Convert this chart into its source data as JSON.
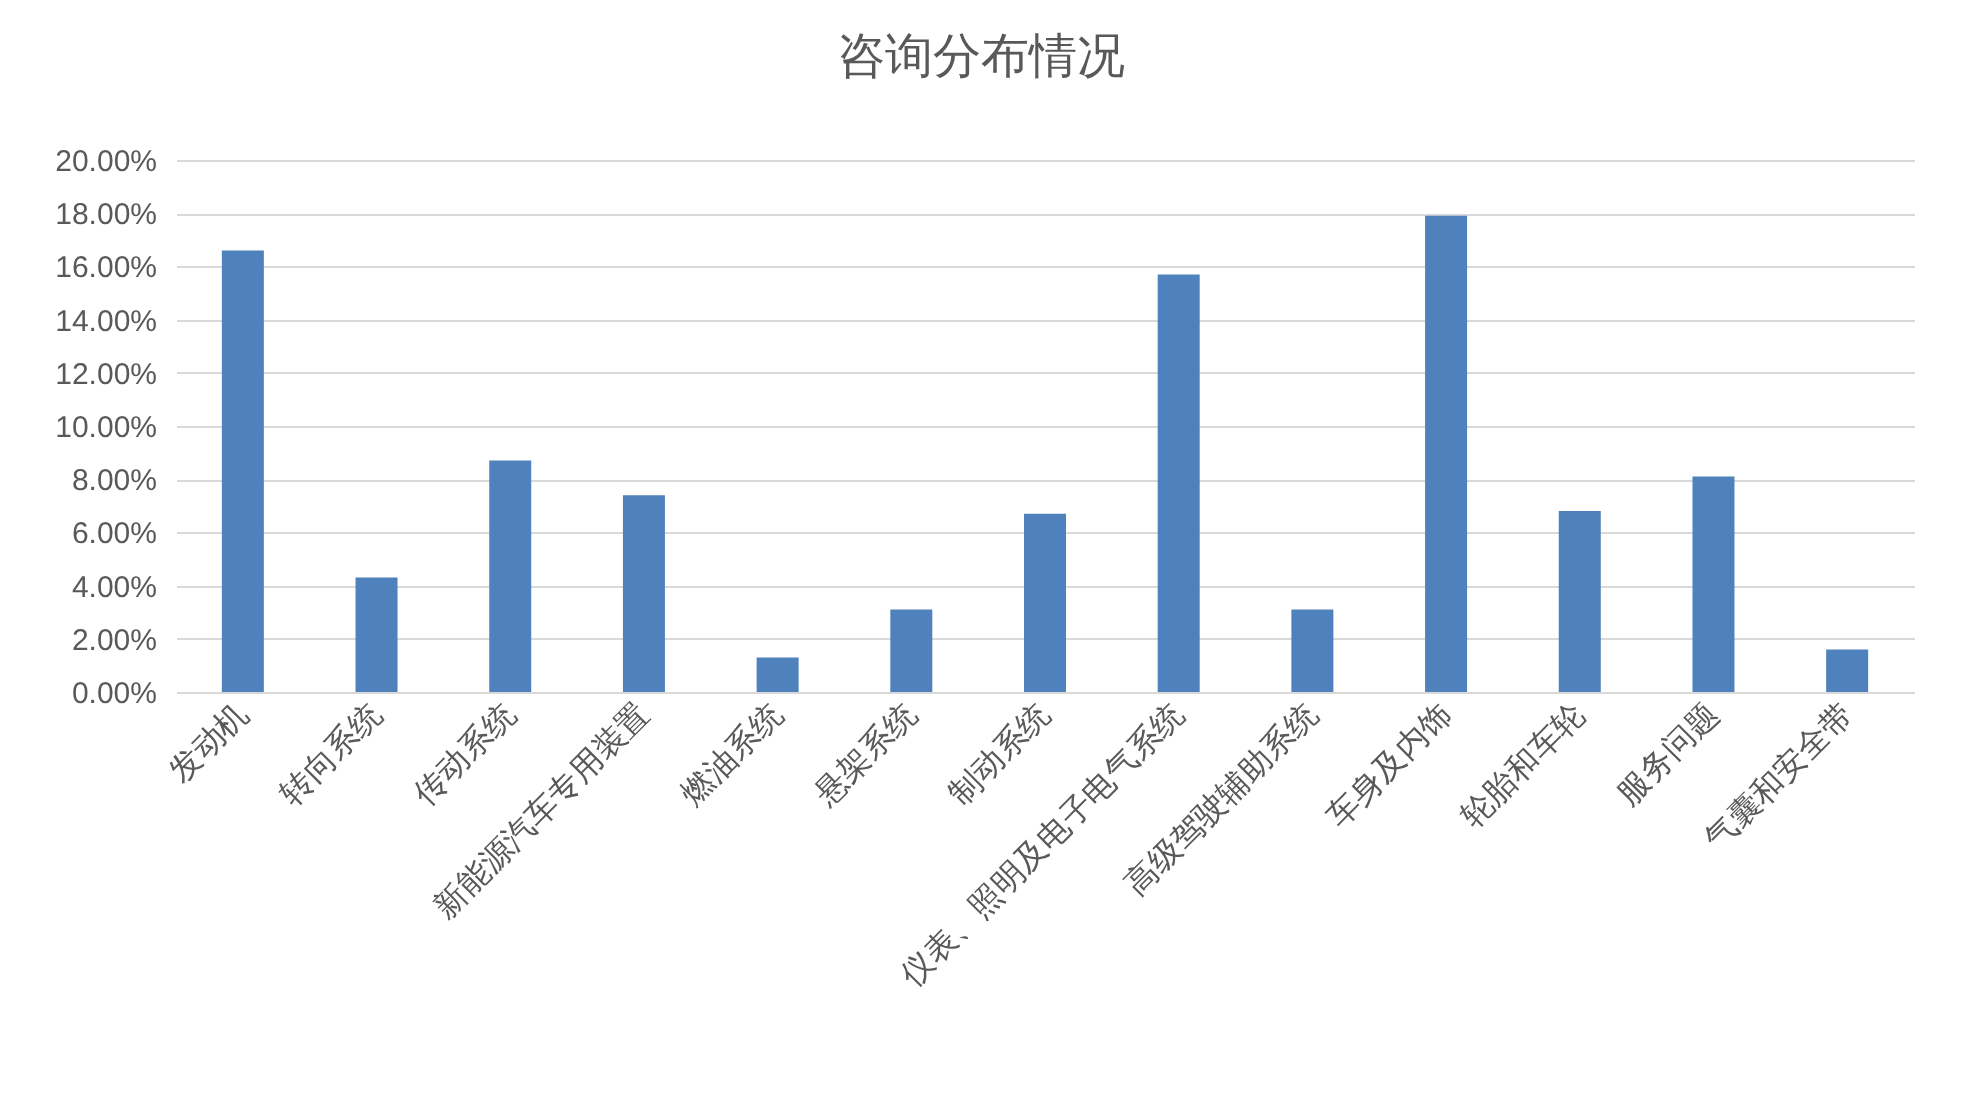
{
  "chart_data": {
    "type": "bar",
    "title": "咨询分布情况",
    "categories": [
      "发动机",
      "转向系统",
      "传动系统",
      "新能源汽车专用装置",
      "燃油系统",
      "悬架系统",
      "制动系统",
      "仪表、照明及电子电气系统",
      "高级驾驶辅助系统",
      "车身及内饰",
      "轮胎和车轮",
      "服务问题",
      "气囊和安全带"
    ],
    "values": [
      16.6,
      4.3,
      8.7,
      7.4,
      1.3,
      3.1,
      6.7,
      15.7,
      3.1,
      17.9,
      6.8,
      8.1,
      1.6
    ],
    "color": "#4f81bd",
    "ylim": [
      0,
      20
    ],
    "yticks": [
      {
        "value": 0,
        "label": "0.00%"
      },
      {
        "value": 2,
        "label": "2.00%"
      },
      {
        "value": 4,
        "label": "4.00%"
      },
      {
        "value": 6,
        "label": "6.00%"
      },
      {
        "value": 8,
        "label": "8.00%"
      },
      {
        "value": 10,
        "label": "10.00%"
      },
      {
        "value": 12,
        "label": "12.00%"
      },
      {
        "value": 14,
        "label": "14.00%"
      },
      {
        "value": 16,
        "label": "16.00%"
      },
      {
        "value": 18,
        "label": "18.00%"
      },
      {
        "value": 20,
        "label": "20.00%"
      }
    ],
    "grid": "y"
  }
}
